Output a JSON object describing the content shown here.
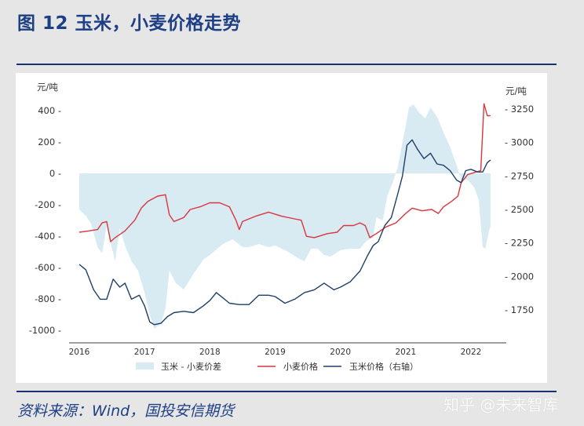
{
  "figure": {
    "title": "图 12 玉米，小麦价格走势",
    "source": "资料来源：Wind，国投安信期货",
    "watermark": "知乎 @未来智库"
  },
  "colors": {
    "title": "#1d3f85",
    "rule": "#16336f",
    "spread_fill": "#d8eaf2",
    "wheat_line": "#d9363e",
    "corn_line": "#1f3f68",
    "axis": "#555555",
    "tick_text": "#333333"
  },
  "chart_data": {
    "type": "line",
    "title": "玉米，小麦价格走势",
    "x": [
      "2016",
      "2017",
      "2018",
      "2019",
      "2020",
      "2021",
      "2022"
    ],
    "xlim": [
      "2016-01",
      "2022-04"
    ],
    "left_axis": {
      "unit_label": "元/吨",
      "ticks": [
        400,
        200,
        0,
        -200,
        -400,
        -600,
        -800,
        -1000
      ],
      "ylim": [
        -1080,
        470
      ]
    },
    "right_axis": {
      "unit_label": "元/吨",
      "ticks": [
        3250,
        3000,
        2750,
        2500,
        2250,
        2000,
        1750
      ],
      "ylim": [
        1600,
        3320
      ]
    },
    "legend": [
      {
        "label": "玉米 - 小麦价差",
        "kind": "area"
      },
      {
        "label": "小麦价格",
        "kind": "line"
      },
      {
        "label": "玉米价格（右轴）",
        "kind": "line"
      }
    ],
    "legend_position": "bottom",
    "grid": false,
    "series": [
      {
        "name": "玉米 - 小麦价差",
        "axis": "left",
        "type": "area",
        "points": [
          [
            "2016.00",
            -230
          ],
          [
            "2016.10",
            -270
          ],
          [
            "2016.18",
            -320
          ],
          [
            "2016.28",
            -470
          ],
          [
            "2016.35",
            -510
          ],
          [
            "2016.42",
            -330
          ],
          [
            "2016.48",
            -440
          ],
          [
            "2016.55",
            -560
          ],
          [
            "2016.62",
            -350
          ],
          [
            "2016.70",
            -460
          ],
          [
            "2016.80",
            -560
          ],
          [
            "2016.90",
            -620
          ],
          [
            "2017.00",
            -760
          ],
          [
            "2017.08",
            -900
          ],
          [
            "2017.15",
            -990
          ],
          [
            "2017.25",
            -960
          ],
          [
            "2017.32",
            -860
          ],
          [
            "2017.38",
            -620
          ],
          [
            "2017.48",
            -700
          ],
          [
            "2017.60",
            -740
          ],
          [
            "2017.75",
            -640
          ],
          [
            "2017.90",
            -550
          ],
          [
            "2018.00",
            -520
          ],
          [
            "2018.20",
            -450
          ],
          [
            "2018.35",
            -420
          ],
          [
            "2018.50",
            -470
          ],
          [
            "2018.60",
            -470
          ],
          [
            "2018.75",
            -450
          ],
          [
            "2018.90",
            -470
          ],
          [
            "2019.00",
            -460
          ],
          [
            "2019.20",
            -500
          ],
          [
            "2019.35",
            -540
          ],
          [
            "2019.45",
            -560
          ],
          [
            "2019.55",
            -480
          ],
          [
            "2019.65",
            -480
          ],
          [
            "2019.75",
            -520
          ],
          [
            "2019.85",
            -530
          ],
          [
            "2020.00",
            -490
          ],
          [
            "2020.15",
            -480
          ],
          [
            "2020.30",
            -480
          ],
          [
            "2020.40",
            -430
          ],
          [
            "2020.50",
            -410
          ],
          [
            "2020.55",
            -280
          ],
          [
            "2020.65",
            -300
          ],
          [
            "2020.72",
            -140
          ],
          [
            "2020.80",
            -60
          ],
          [
            "2020.88",
            40
          ],
          [
            "2020.95",
            200
          ],
          [
            "2021.00",
            300
          ],
          [
            "2021.05",
            420
          ],
          [
            "2021.12",
            440
          ],
          [
            "2021.20",
            390
          ],
          [
            "2021.30",
            350
          ],
          [
            "2021.38",
            420
          ],
          [
            "2021.48",
            360
          ],
          [
            "2021.58",
            260
          ],
          [
            "2021.68",
            170
          ],
          [
            "2021.78",
            50
          ],
          [
            "2021.85",
            -40
          ],
          [
            "2021.95",
            -40
          ],
          [
            "2022.05",
            -90
          ],
          [
            "2022.12",
            -170
          ],
          [
            "2022.18",
            -470
          ],
          [
            "2022.22",
            -480
          ],
          [
            "2022.28",
            -360
          ],
          [
            "2022.30",
            -340
          ]
        ]
      },
      {
        "name": "小麦价格",
        "axis": "right",
        "type": "line",
        "points": [
          [
            "2016.00",
            2330
          ],
          [
            "2016.15",
            2340
          ],
          [
            "2016.28",
            2350
          ],
          [
            "2016.35",
            2400
          ],
          [
            "2016.42",
            2410
          ],
          [
            "2016.48",
            2260
          ],
          [
            "2016.55",
            2290
          ],
          [
            "2016.70",
            2340
          ],
          [
            "2016.85",
            2420
          ],
          [
            "2016.95",
            2510
          ],
          [
            "2017.05",
            2560
          ],
          [
            "2017.20",
            2600
          ],
          [
            "2017.32",
            2610
          ],
          [
            "2017.38",
            2460
          ],
          [
            "2017.45",
            2410
          ],
          [
            "2017.60",
            2440
          ],
          [
            "2017.70",
            2500
          ],
          [
            "2017.85",
            2520
          ],
          [
            "2018.00",
            2550
          ],
          [
            "2018.15",
            2550
          ],
          [
            "2018.30",
            2520
          ],
          [
            "2018.40",
            2420
          ],
          [
            "2018.45",
            2350
          ],
          [
            "2018.50",
            2410
          ],
          [
            "2018.70",
            2450
          ],
          [
            "2018.90",
            2480
          ],
          [
            "2019.10",
            2450
          ],
          [
            "2019.30",
            2430
          ],
          [
            "2019.40",
            2420
          ],
          [
            "2019.48",
            2300
          ],
          [
            "2019.60",
            2290
          ],
          [
            "2019.80",
            2320
          ],
          [
            "2019.95",
            2330
          ],
          [
            "2020.05",
            2380
          ],
          [
            "2020.20",
            2380
          ],
          [
            "2020.30",
            2400
          ],
          [
            "2020.38",
            2380
          ],
          [
            "2020.45",
            2290
          ],
          [
            "2020.55",
            2320
          ],
          [
            "2020.70",
            2370
          ],
          [
            "2020.85",
            2400
          ],
          [
            "2021.00",
            2470
          ],
          [
            "2021.10",
            2510
          ],
          [
            "2021.25",
            2490
          ],
          [
            "2021.40",
            2500
          ],
          [
            "2021.50",
            2470
          ],
          [
            "2021.58",
            2520
          ],
          [
            "2021.70",
            2560
          ],
          [
            "2021.80",
            2600
          ],
          [
            "2021.85",
            2700
          ],
          [
            "2021.95",
            2760
          ],
          [
            "2022.08",
            2780
          ],
          [
            "2022.15",
            2790
          ],
          [
            "2022.20",
            3290
          ],
          [
            "2022.25",
            3200
          ],
          [
            "2022.30",
            3200
          ]
        ]
      },
      {
        "name": "玉米价格（右轴）",
        "axis": "right",
        "type": "line",
        "points": [
          [
            "2016.00",
            2090
          ],
          [
            "2016.10",
            2050
          ],
          [
            "2016.22",
            1900
          ],
          [
            "2016.32",
            1830
          ],
          [
            "2016.42",
            1830
          ],
          [
            "2016.52",
            1980
          ],
          [
            "2016.62",
            1920
          ],
          [
            "2016.70",
            1950
          ],
          [
            "2016.80",
            1830
          ],
          [
            "2016.92",
            1860
          ],
          [
            "2017.00",
            1780
          ],
          [
            "2017.08",
            1660
          ],
          [
            "2017.15",
            1640
          ],
          [
            "2017.25",
            1650
          ],
          [
            "2017.35",
            1700
          ],
          [
            "2017.45",
            1730
          ],
          [
            "2017.60",
            1740
          ],
          [
            "2017.75",
            1730
          ],
          [
            "2017.90",
            1780
          ],
          [
            "2018.00",
            1820
          ],
          [
            "2018.10",
            1880
          ],
          [
            "2018.20",
            1840
          ],
          [
            "2018.30",
            1800
          ],
          [
            "2018.45",
            1790
          ],
          [
            "2018.60",
            1790
          ],
          [
            "2018.75",
            1860
          ],
          [
            "2018.90",
            1860
          ],
          [
            "2019.00",
            1850
          ],
          [
            "2019.15",
            1800
          ],
          [
            "2019.30",
            1830
          ],
          [
            "2019.45",
            1880
          ],
          [
            "2019.60",
            1900
          ],
          [
            "2019.75",
            1950
          ],
          [
            "2019.90",
            1900
          ],
          [
            "2020.00",
            1920
          ],
          [
            "2020.15",
            1960
          ],
          [
            "2020.30",
            2040
          ],
          [
            "2020.42",
            2160
          ],
          [
            "2020.50",
            2230
          ],
          [
            "2020.58",
            2260
          ],
          [
            "2020.68",
            2380
          ],
          [
            "2020.78",
            2440
          ],
          [
            "2020.88",
            2620
          ],
          [
            "2020.95",
            2750
          ],
          [
            "2021.02",
            2980
          ],
          [
            "2021.10",
            3020
          ],
          [
            "2021.18",
            2950
          ],
          [
            "2021.28",
            2880
          ],
          [
            "2021.38",
            2920
          ],
          [
            "2021.48",
            2840
          ],
          [
            "2021.58",
            2830
          ],
          [
            "2021.68",
            2790
          ],
          [
            "2021.78",
            2720
          ],
          [
            "2021.85",
            2700
          ],
          [
            "2021.92",
            2790
          ],
          [
            "2022.00",
            2800
          ],
          [
            "2022.10",
            2780
          ],
          [
            "2022.18",
            2780
          ],
          [
            "2022.25",
            2850
          ],
          [
            "2022.30",
            2870
          ]
        ]
      }
    ]
  }
}
